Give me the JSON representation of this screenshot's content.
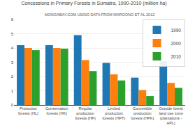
{
  "chart_data": {
    "type": "bar",
    "title": "Concessions in Primary Forests in Sumatra, 1990-2010 (million ha)",
    "subtitle": "MONGABAY.COM USING DATA FROM MARGONO ET AL 2012",
    "categories": [
      "Protection\nforests (HL)",
      "Conservation\nforests (HK)",
      "Regular\nproduction\nforests (HP)",
      "Limited\nproduction\nforests (HPT)",
      "Convertible\nproduction\nforests (HPK)",
      "Outside forest\nland use zone\n(plantations -\nAPL)"
    ],
    "series": [
      {
        "name": "1990",
        "values": [
          4.2,
          4.2,
          4.9,
          2.95,
          1.92,
          3.08
        ]
      },
      {
        "name": "2000",
        "values": [
          4.0,
          4.0,
          3.15,
          2.15,
          1.05,
          1.55
        ]
      },
      {
        "name": "2010",
        "values": [
          3.85,
          3.95,
          2.38,
          1.72,
          0.63,
          1.2
        ]
      }
    ],
    "ylim": [
      0,
      6
    ],
    "yticks": [
      0,
      1,
      2,
      3,
      4,
      5,
      6
    ],
    "grid": true,
    "legend": "upper right"
  }
}
